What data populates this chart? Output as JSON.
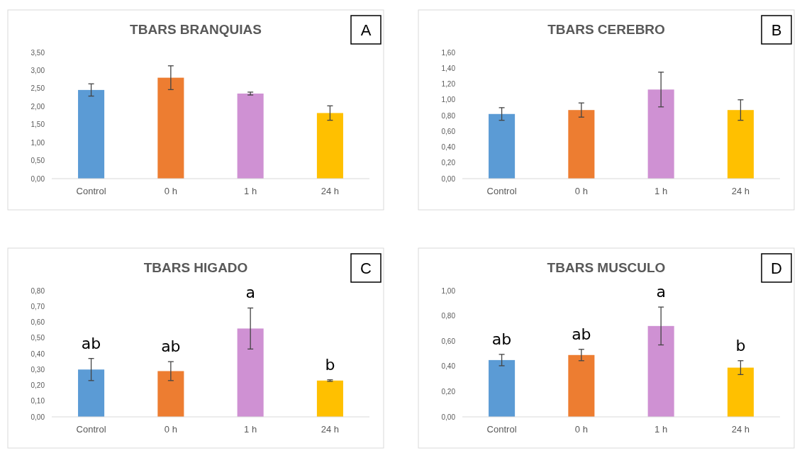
{
  "chart_data": [
    {
      "type": "bar",
      "title": "TBARS BRANQUIAS",
      "categories": [
        "Control",
        "0 h",
        "1 h",
        "24 h"
      ],
      "values": [
        2.46,
        2.8,
        2.36,
        1.82
      ],
      "errors": [
        0.17,
        0.33,
        0.04,
        0.2
      ],
      "colors": [
        "#5b9bd5",
        "#ed7d31",
        "#cf91d3",
        "#ffc000"
      ],
      "ylim": [
        0,
        3.5
      ],
      "yticks": [
        {
          "value": 0,
          "label": "0,00"
        },
        {
          "value": 0.5,
          "label": "0,50"
        },
        {
          "value": 1,
          "label": "1,00"
        },
        {
          "value": 1.5,
          "label": "1,50"
        },
        {
          "value": 2,
          "label": "2,00"
        },
        {
          "value": 2.5,
          "label": "2,50"
        },
        {
          "value": 3,
          "label": "3,00"
        },
        {
          "value": 3.5,
          "label": "3,50"
        }
      ],
      "annotations": [
        "A"
      ]
    },
    {
      "type": "bar",
      "title": "TBARS CEREBRO",
      "categories": [
        "Control",
        "0 h",
        "1 h",
        "24 h"
      ],
      "values": [
        0.82,
        0.87,
        1.13,
        0.87
      ],
      "errors": [
        0.08,
        0.09,
        0.22,
        0.13
      ],
      "colors": [
        "#5b9bd5",
        "#ed7d31",
        "#cf91d3",
        "#ffc000"
      ],
      "ylim": [
        0,
        1.6
      ],
      "yticks": [
        {
          "value": 0,
          "label": "0,00"
        },
        {
          "value": 0.2,
          "label": "0,20"
        },
        {
          "value": 0.4,
          "label": "0,40"
        },
        {
          "value": 0.6,
          "label": "0,60"
        },
        {
          "value": 0.8,
          "label": "0,80"
        },
        {
          "value": 1,
          "label": "1,00"
        },
        {
          "value": 1.2,
          "label": "1,20"
        },
        {
          "value": 1.4,
          "label": "1,40"
        },
        {
          "value": 1.6,
          "label": "1,60"
        }
      ],
      "annotations": [
        "B"
      ]
    },
    {
      "type": "bar",
      "title": "TBARS HIGADO",
      "categories": [
        "Control",
        "0 h",
        "1 h",
        "24 h"
      ],
      "values": [
        0.3,
        0.29,
        0.56,
        0.23
      ],
      "errors": [
        0.07,
        0.06,
        0.13,
        0.005
      ],
      "colors": [
        "#5b9bd5",
        "#ed7d31",
        "#cf91d3",
        "#ffc000"
      ],
      "ylim": [
        0,
        0.8
      ],
      "yticks": [
        {
          "value": 0,
          "label": "0,00"
        },
        {
          "value": 0.1,
          "label": "0,10"
        },
        {
          "value": 0.2,
          "label": "0,20"
        },
        {
          "value": 0.3,
          "label": "0,30"
        },
        {
          "value": 0.4,
          "label": "0,40"
        },
        {
          "value": 0.5,
          "label": "0,50"
        },
        {
          "value": 0.6,
          "label": "0,60"
        },
        {
          "value": 0.7,
          "label": "0,70"
        },
        {
          "value": 0.8,
          "label": "0,80"
        }
      ],
      "annotations": [
        "C",
        "ab",
        "ab",
        "a",
        "b"
      ]
    },
    {
      "type": "bar",
      "title": "TBARS MUSCULO",
      "categories": [
        "Control",
        "0 h",
        "1 h",
        "24 h"
      ],
      "values": [
        0.45,
        0.49,
        0.72,
        0.39
      ],
      "errors": [
        0.045,
        0.045,
        0.15,
        0.055
      ],
      "colors": [
        "#5b9bd5",
        "#ed7d31",
        "#cf91d3",
        "#ffc000"
      ],
      "ylim": [
        0,
        1
      ],
      "yticks": [
        {
          "value": 0,
          "label": "0,00"
        },
        {
          "value": 0.2,
          "label": "0,20"
        },
        {
          "value": 0.4,
          "label": "0,40"
        },
        {
          "value": 0.6,
          "label": "0,60"
        },
        {
          "value": 0.8,
          "label": "0,80"
        },
        {
          "value": 1,
          "label": "1,00"
        }
      ],
      "annotations": [
        "D",
        "ab",
        "ab",
        "a",
        "b"
      ]
    }
  ]
}
